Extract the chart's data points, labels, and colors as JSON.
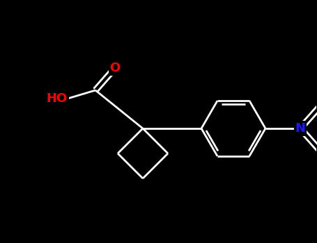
{
  "background_color": "#000000",
  "bond_color": "#ffffff",
  "bond_lw": 2.0,
  "figsize": [
    4.55,
    3.5
  ],
  "dpi": 100,
  "atom_bg_color": "#000000",
  "colors": {
    "O": "#ff0000",
    "N": "#1a1aff",
    "C": "#ffffff"
  },
  "label_fontsize": 13,
  "label_fontweight": "bold"
}
